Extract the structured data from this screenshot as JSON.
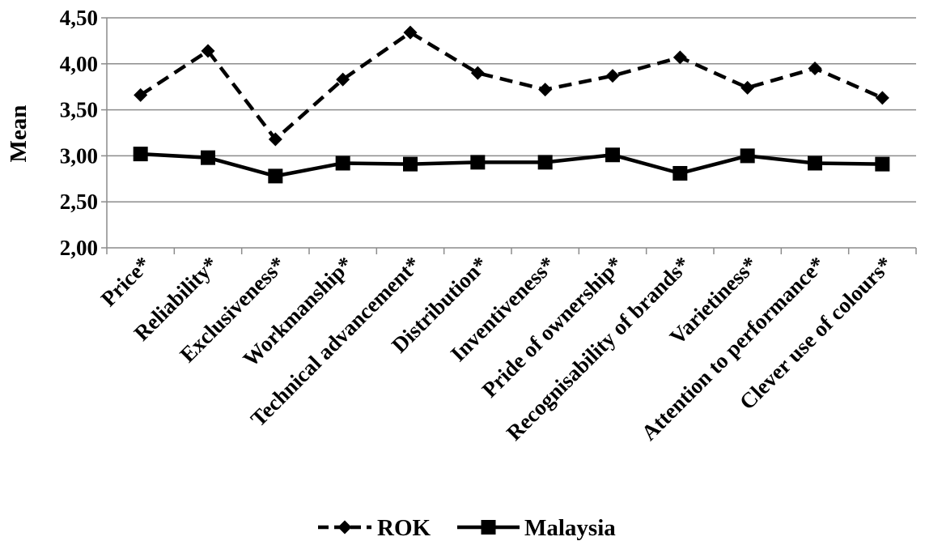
{
  "chart_data": {
    "type": "line",
    "ylabel": "Mean",
    "xlabel": "",
    "ylim": [
      2.0,
      4.5
    ],
    "yticks": [
      "2,00",
      "2,50",
      "3,00",
      "3,50",
      "4,00",
      "4,50"
    ],
    "grid": "horizontal",
    "legend_position": "bottom",
    "categories": [
      "Price*",
      "Reliability*",
      "Exclusiveness*",
      "Workmanship*",
      "Technical advancement*",
      "Distribution*",
      "Inventiveness*",
      "Pride of ownership*",
      "Recognisability of brands*",
      "Varietiness*",
      "Attention to performance*",
      "Clever use of colours*"
    ],
    "series": [
      {
        "name": "ROK",
        "line_style": "dashed",
        "marker": "diamond",
        "color": "#000000",
        "values": [
          3.66,
          4.14,
          3.18,
          3.83,
          4.34,
          3.9,
          3.72,
          3.87,
          4.07,
          3.74,
          3.95,
          3.63
        ]
      },
      {
        "name": "Malaysia",
        "line_style": "solid",
        "marker": "square",
        "color": "#000000",
        "values": [
          3.02,
          2.98,
          2.78,
          2.92,
          2.91,
          2.93,
          2.93,
          3.01,
          2.81,
          3.0,
          2.92,
          2.91
        ]
      }
    ]
  }
}
